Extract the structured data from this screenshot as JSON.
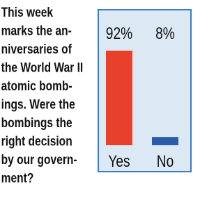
{
  "question_lines": [
    "This week",
    "marks the an-",
    "niversaries of",
    "the World War II",
    "atomic bomb-",
    "ings. Were the",
    "bombings the",
    "right decision",
    "by our govern-",
    "ment?"
  ],
  "chart_data": {
    "type": "bar",
    "categories": [
      "Yes",
      "No"
    ],
    "values": [
      92,
      8
    ],
    "value_labels": [
      "92%",
      "8%"
    ],
    "colors": [
      "#e8402a",
      "#2a5ca8"
    ],
    "ylim": [
      0,
      100
    ]
  }
}
